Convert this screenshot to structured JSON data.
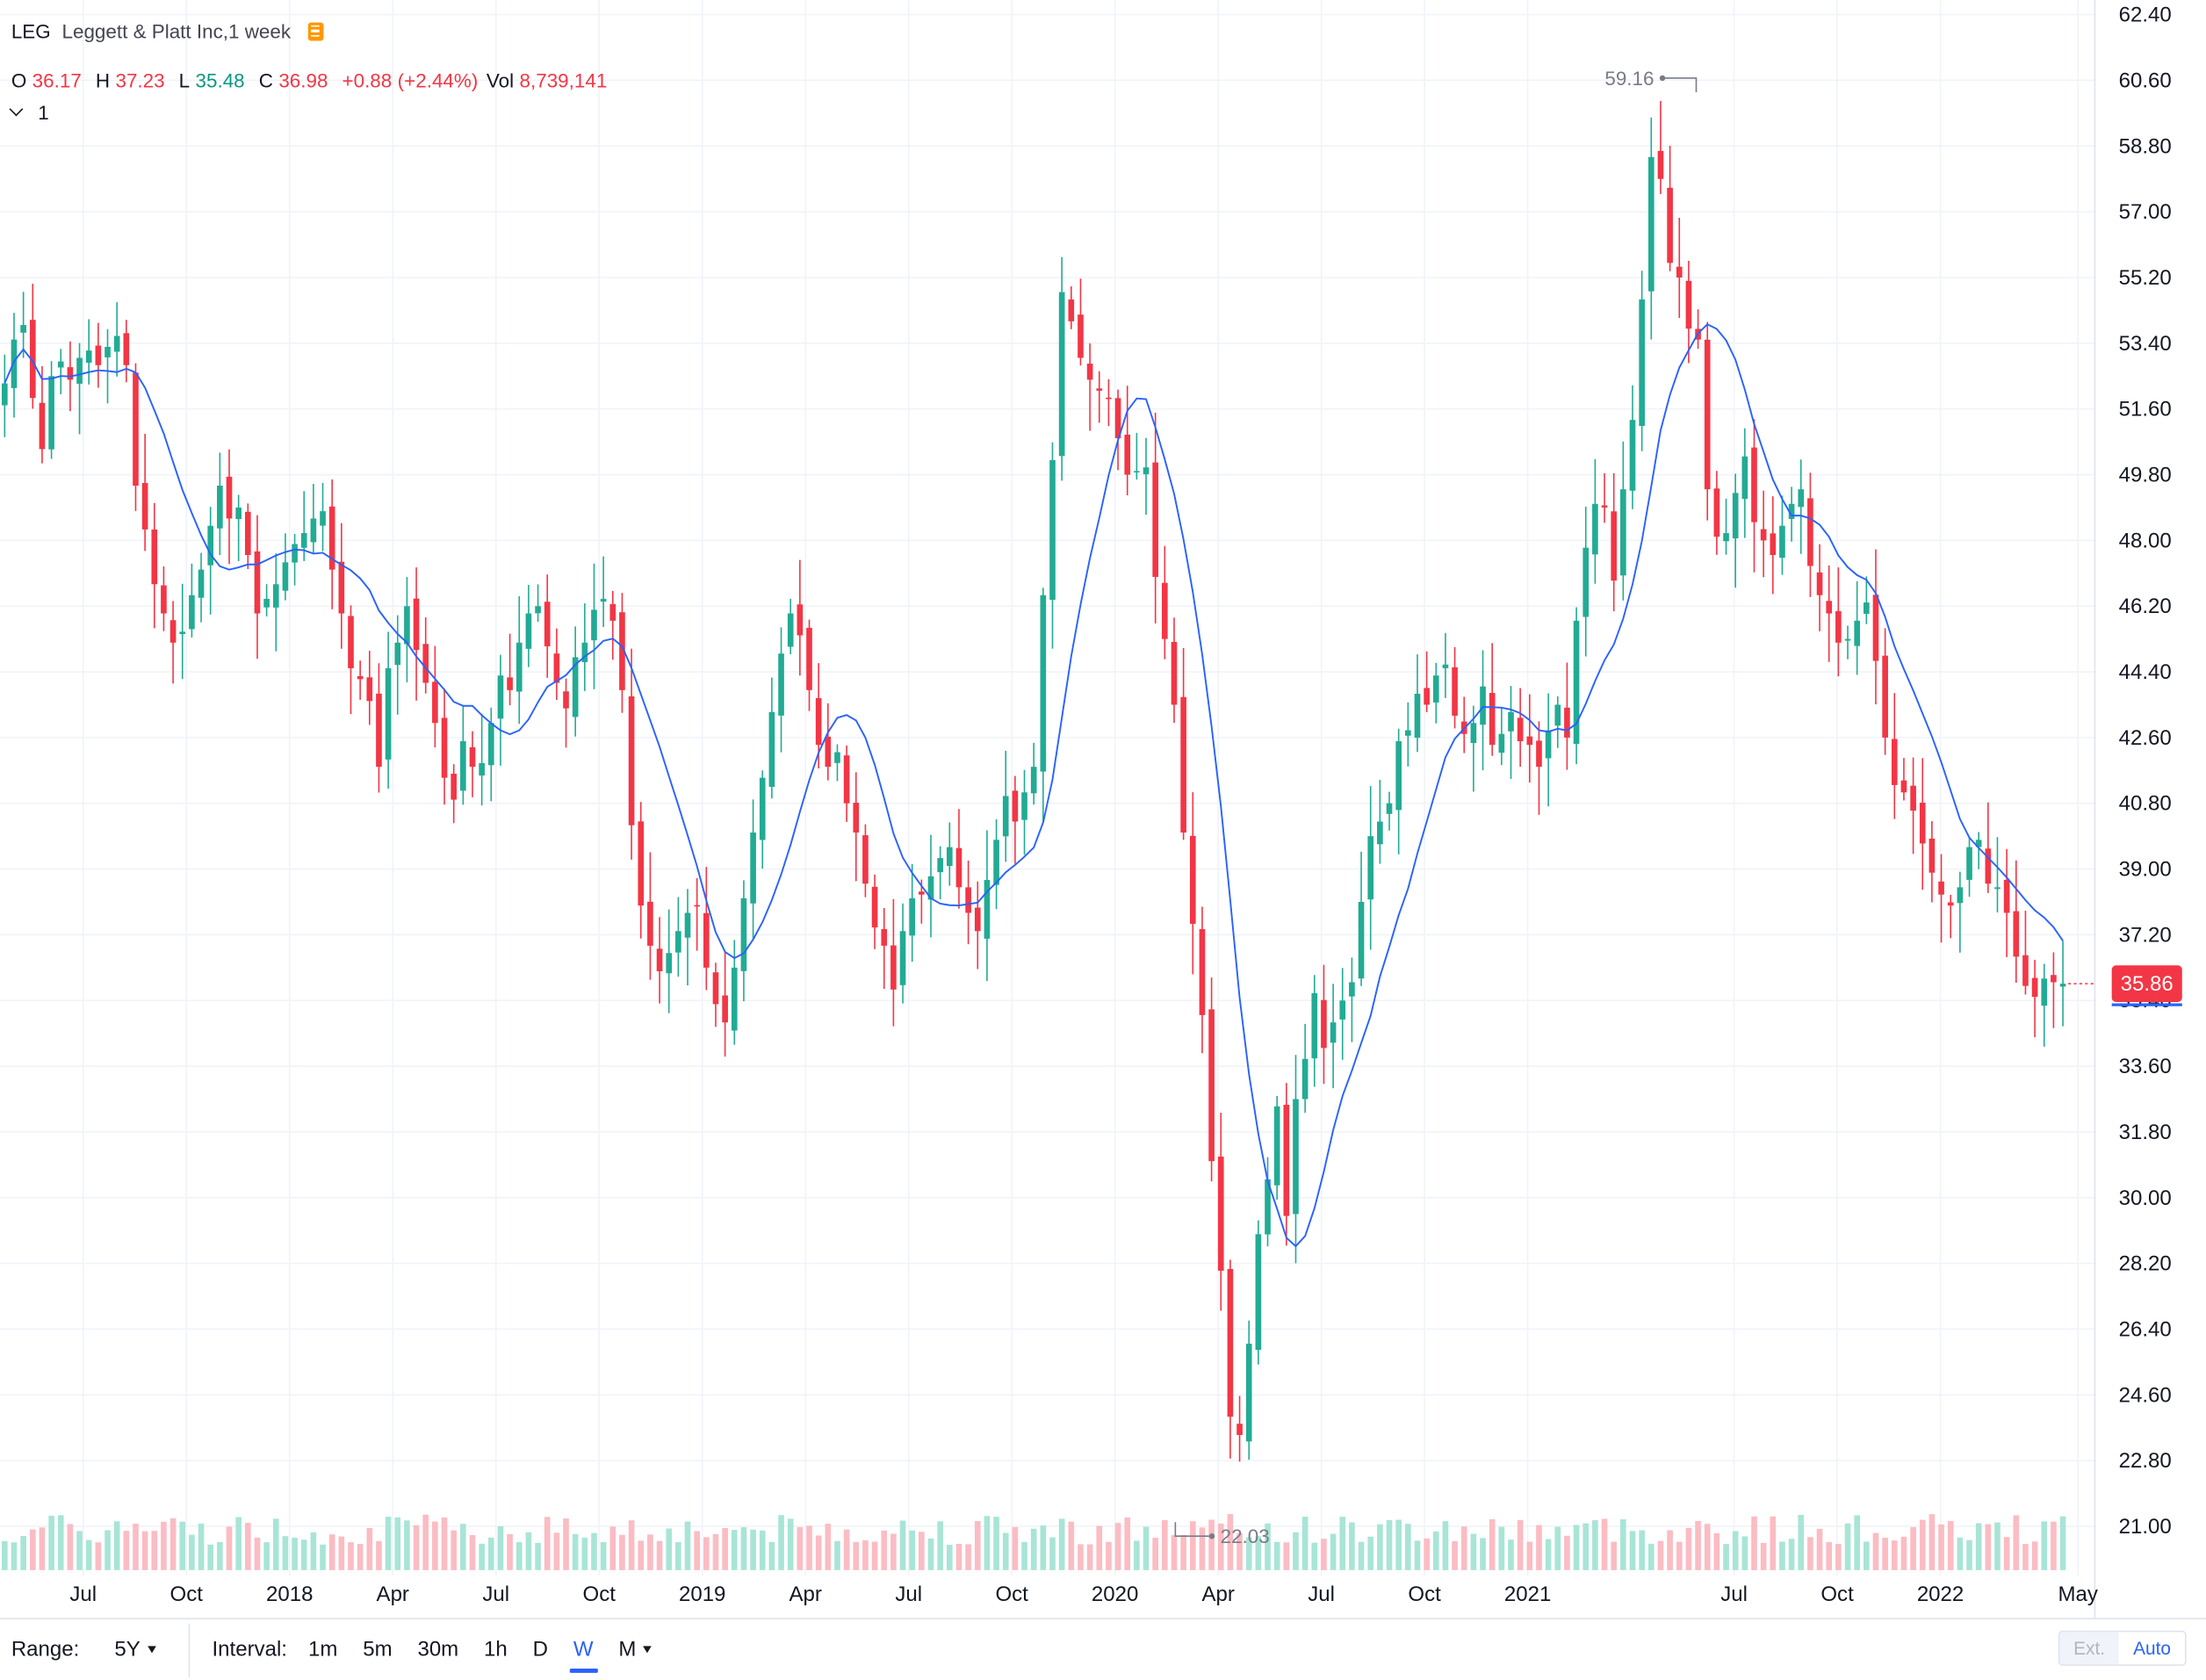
{
  "legend": {
    "symbol": "LEG",
    "description": "Leggett & Platt Inc,1 week",
    "o_label": "O",
    "o_value": "36.17",
    "h_label": "H",
    "h_value": "37.23",
    "l_label": "L",
    "l_value": "35.48",
    "c_label": "C",
    "c_value": "36.98",
    "change": "+0.88",
    "change_pct": "(+2.44%)",
    "vol_label": "Vol",
    "vol_value": "8,739,141",
    "indicator_count": "1"
  },
  "bottom_bar": {
    "range_label": "Range:",
    "range_value": "5Y",
    "interval_label": "Interval:",
    "intervals": [
      "1m",
      "5m",
      "30m",
      "1h",
      "D",
      "W",
      "M"
    ],
    "active_interval": "W",
    "ext_label": "Ext.",
    "auto_label": "Auto"
  },
  "colors": {
    "up": "#22ab94",
    "down": "#f23645",
    "ma": "#2962ff",
    "grid": "#f0f3fa",
    "badge": "#ff9800"
  },
  "chart_data": {
    "type": "candlestick",
    "interval": "1 week",
    "x_range": [
      "2017-05",
      "2022-05"
    ],
    "ylim": [
      19.8,
      62.8
    ],
    "y_ticks": [
      "62.40",
      "60.60",
      "58.80",
      "57.00",
      "55.20",
      "53.40",
      "51.60",
      "49.80",
      "48.00",
      "46.20",
      "44.40",
      "42.60",
      "40.80",
      "39.00",
      "37.20",
      "35.40",
      "33.60",
      "31.80",
      "30.00",
      "28.20",
      "26.40",
      "24.60",
      "22.80",
      "21.00"
    ],
    "x_ticks": [
      {
        "label": "Jul",
        "date": "2017-07"
      },
      {
        "label": "Oct",
        "date": "2017-10"
      },
      {
        "label": "2018",
        "date": "2018-01"
      },
      {
        "label": "Apr",
        "date": "2018-04"
      },
      {
        "label": "Jul",
        "date": "2018-07"
      },
      {
        "label": "Oct",
        "date": "2018-10"
      },
      {
        "label": "2019",
        "date": "2019-01"
      },
      {
        "label": "Apr",
        "date": "2019-04"
      },
      {
        "label": "Jul",
        "date": "2019-07"
      },
      {
        "label": "Oct",
        "date": "2019-10"
      },
      {
        "label": "2020",
        "date": "2020-01"
      },
      {
        "label": "Apr",
        "date": "2020-04"
      },
      {
        "label": "Jul",
        "date": "2020-07"
      },
      {
        "label": "Oct",
        "date": "2020-10"
      },
      {
        "label": "2021",
        "date": "2021-01"
      },
      {
        "label": "Jul",
        "date": "2021-07"
      },
      {
        "label": "Oct",
        "date": "2021-10"
      },
      {
        "label": "2022",
        "date": "2022-01"
      },
      {
        "label": "May",
        "date": "2022-05"
      }
    ],
    "last_price": "35.86",
    "high_marker": {
      "label": "59.16",
      "value": 59.16,
      "date": "2021-05"
    },
    "low_marker": {
      "label": "22.03",
      "value": 22.03,
      "date": "2020-03"
    },
    "series": [
      {
        "type": "ohlc",
        "note": "weekly closes, anchored to visible chart levels",
        "closes": [
          52.3,
          53.5,
          53.9,
          51.9,
          50.5,
          52.5,
          52.9,
          52.4,
          53.0,
          53.2,
          52.8,
          53.3,
          53.6,
          52.8,
          49.5,
          48.3,
          46.8,
          46.0,
          45.2,
          45.5,
          46.5,
          47.2,
          48.4,
          49.5,
          48.6,
          48.9,
          47.6,
          46.0,
          46.4,
          46.8,
          47.4,
          47.9,
          48.2,
          48.6,
          48.8,
          47.2,
          46.0,
          44.5,
          44.2,
          43.6,
          41.8,
          44.5,
          45.2,
          46.2,
          45.0,
          44.1,
          43.0,
          41.5,
          40.9,
          42.5,
          41.8,
          41.9,
          43.0,
          44.3,
          43.9,
          45.2,
          46.0,
          46.2,
          45.1,
          44.1,
          43.4,
          44.8,
          45.2,
          46.1,
          46.4,
          45.8,
          43.9,
          40.2,
          38.0,
          36.9,
          36.2,
          36.7,
          37.3,
          37.8,
          38.0,
          36.3,
          35.3,
          34.8,
          36.3,
          38.2,
          40.0,
          41.5,
          43.3,
          44.9,
          46.0,
          45.4,
          43.9,
          42.4,
          41.8,
          42.2,
          40.8,
          40.0,
          38.6,
          37.4,
          36.9,
          35.7,
          37.3,
          38.2,
          38.3,
          38.8,
          39.3,
          39.6,
          38.5,
          37.8,
          37.3,
          38.7,
          39.8,
          41.0,
          40.3,
          41.1,
          41.8,
          46.5,
          50.2,
          54.8,
          54.0,
          53.0,
          52.4,
          52.1,
          51.9,
          50.8,
          49.8,
          49.9,
          50.0,
          47.0,
          45.3,
          43.5,
          40.0,
          37.5,
          35.0,
          31.0,
          28.0,
          24.0,
          23.5,
          26.0,
          29.0,
          30.5,
          32.5,
          29.5,
          32.7,
          33.8,
          35.6,
          34.1,
          34.8,
          35.4,
          35.9,
          38.1,
          39.9,
          40.3,
          40.8,
          42.5,
          42.8,
          43.8,
          43.5,
          44.3,
          44.6,
          43.2,
          42.7,
          43.0,
          44.0,
          42.4,
          42.7,
          43.3,
          42.5,
          42.4,
          41.8,
          42.8,
          43.5,
          42.6,
          45.8,
          47.8,
          49.0,
          48.9,
          46.9,
          49.4,
          51.3,
          54.6,
          58.5,
          57.9,
          55.6,
          55.2,
          53.8,
          53.5,
          49.4,
          48.1,
          48.2,
          49.3,
          50.3,
          48.5,
          48.0,
          47.6,
          48.4,
          49.0,
          49.4,
          47.3,
          46.5,
          46.0,
          45.2,
          45.3,
          45.8,
          46.3,
          44.7,
          42.6,
          41.3,
          41.1,
          40.6,
          39.7,
          38.9,
          38.3,
          38.0,
          38.5,
          39.6,
          39.8,
          38.6,
          38.5,
          37.8,
          36.6,
          35.8,
          35.5,
          36.0,
          35.9,
          35.86
        ]
      },
      {
        "type": "line",
        "name": "",
        "period": 10
      }
    ],
    "volume": {
      "note": "volume bars along bottom, peaks around Dec 2021"
    }
  }
}
